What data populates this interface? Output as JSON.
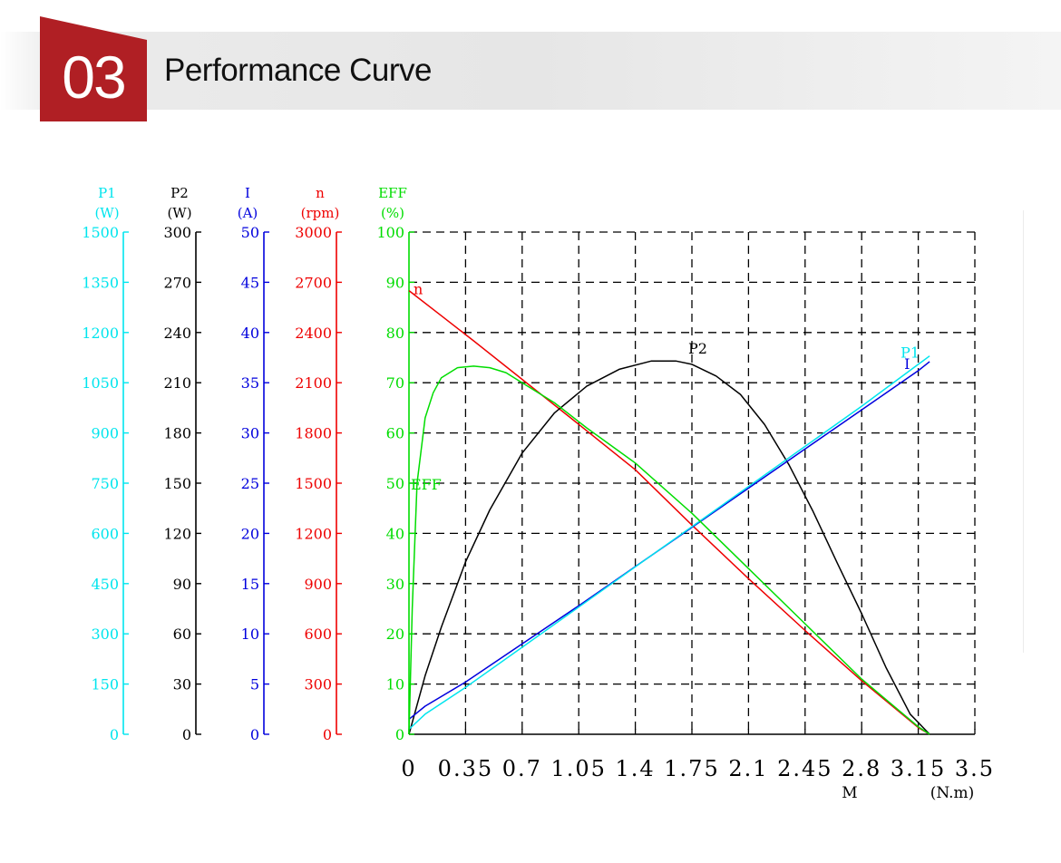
{
  "header": {
    "badge_number": "03",
    "title": "Performance Curve"
  },
  "colors": {
    "P1": "#00e5ee",
    "P2": "#000000",
    "I": "#0000dd",
    "n": "#ee0000",
    "EFF": "#00dd00",
    "badge": "#b01f24",
    "grid": "#000000"
  },
  "chart_data": {
    "type": "line",
    "title": "",
    "xlabel": "M",
    "xunit": "(N.m)",
    "x_ticks": [
      "0",
      "0.35",
      "0.7",
      "1.05",
      "1.4",
      "1.75",
      "2.1",
      "2.45",
      "2.8",
      "3.15",
      "3.5"
    ],
    "xlim": [
      0,
      3.5
    ],
    "grid": true,
    "axes": [
      {
        "key": "P1",
        "name": "P1",
        "unit": "(W)",
        "ticks": [
          "0",
          "150",
          "300",
          "450",
          "600",
          "750",
          "900",
          "1050",
          "1200",
          "1350",
          "1500"
        ],
        "ylim": [
          0,
          1500
        ]
      },
      {
        "key": "P2",
        "name": "P2",
        "unit": "(W)",
        "ticks": [
          "0",
          "30",
          "60",
          "90",
          "120",
          "150",
          "180",
          "210",
          "240",
          "270",
          "300"
        ],
        "ylim": [
          0,
          300
        ]
      },
      {
        "key": "I",
        "name": "I",
        "unit": "(A)",
        "ticks": [
          "0",
          "5",
          "10",
          "15",
          "20",
          "25",
          "30",
          "35",
          "40",
          "45",
          "50"
        ],
        "ylim": [
          0,
          50
        ]
      },
      {
        "key": "n",
        "name": "n",
        "unit": "(rpm)",
        "ticks": [
          "0",
          "300",
          "600",
          "900",
          "1200",
          "1500",
          "1800",
          "2100",
          "2400",
          "2700",
          "3000"
        ],
        "ylim": [
          0,
          3000
        ]
      },
      {
        "key": "EFF",
        "name": "EFF",
        "unit": "(%)",
        "ticks": [
          "0",
          "10",
          "20",
          "30",
          "40",
          "50",
          "60",
          "70",
          "80",
          "90",
          "100"
        ],
        "ylim": [
          0,
          100
        ]
      }
    ],
    "series": [
      {
        "name": "n",
        "axis": "n",
        "label": "n",
        "x": [
          0,
          0.2,
          0.4,
          0.7,
          1.0,
          1.4,
          1.75,
          2.1,
          2.45,
          2.8,
          3.15,
          3.22
        ],
        "y": [
          2650,
          2500,
          2350,
          2120,
          1890,
          1580,
          1250,
          930,
          620,
          320,
          40,
          0
        ]
      },
      {
        "name": "P2",
        "axis": "P2",
        "label": "P2",
        "x": [
          0,
          0.1,
          0.2,
          0.35,
          0.5,
          0.7,
          0.9,
          1.1,
          1.3,
          1.5,
          1.65,
          1.75,
          1.9,
          2.05,
          2.2,
          2.35,
          2.5,
          2.65,
          2.8,
          2.95,
          3.1,
          3.22
        ],
        "y": [
          0,
          35,
          64,
          103,
          134,
          168,
          192,
          208,
          218,
          223,
          223,
          221,
          214,
          203,
          185,
          161,
          133,
          102,
          72,
          40,
          12,
          0
        ]
      },
      {
        "name": "I",
        "axis": "I",
        "label": "I",
        "x": [
          0,
          0.1,
          0.35,
          0.7,
          1.05,
          1.4,
          1.75,
          2.1,
          2.45,
          2.8,
          3.15,
          3.22
        ],
        "y": [
          1.5,
          2.8,
          5.2,
          9.0,
          12.8,
          16.7,
          20.6,
          24.5,
          28.4,
          32.3,
          36.2,
          37.1
        ]
      },
      {
        "name": "P1",
        "axis": "P1",
        "label": "P1",
        "x": [
          0,
          0.1,
          0.35,
          0.7,
          1.05,
          1.4,
          1.75,
          2.1,
          2.45,
          2.8,
          3.15,
          3.22
        ],
        "y": [
          15,
          60,
          140,
          260,
          380,
          500,
          620,
          740,
          860,
          980,
          1105,
          1130
        ]
      },
      {
        "name": "EFF",
        "axis": "EFF",
        "label": "EFF",
        "x": [
          0,
          0.02,
          0.05,
          0.1,
          0.15,
          0.2,
          0.3,
          0.4,
          0.5,
          0.6,
          0.7,
          0.9,
          1.1,
          1.4,
          1.75,
          2.1,
          2.45,
          2.8,
          3.15,
          3.22
        ],
        "y": [
          0,
          25,
          50,
          63,
          68,
          71,
          73,
          73.3,
          73,
          72,
          70,
          66,
          61,
          54,
          44,
          33,
          22,
          11,
          1.5,
          0
        ]
      }
    ]
  }
}
